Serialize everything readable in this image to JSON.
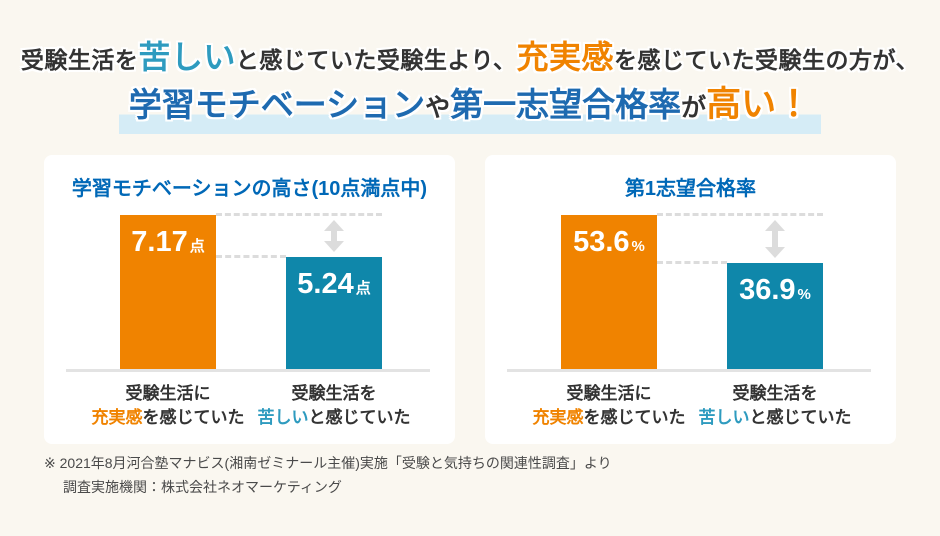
{
  "headline": {
    "line1": [
      {
        "text": "受験生活を",
        "emphasis": "none"
      },
      {
        "text": "苦しい",
        "emphasis": "teal"
      },
      {
        "text": "と感じていた受験生より、",
        "emphasis": "none"
      },
      {
        "text": "充実感",
        "emphasis": "orange"
      },
      {
        "text": "を感じていた受験生の方が、",
        "emphasis": "none"
      }
    ],
    "line2": [
      {
        "text": "学習モチベーション",
        "emphasis": "blue"
      },
      {
        "text": "や",
        "emphasis": "none"
      },
      {
        "text": "第一志望合格率",
        "emphasis": "blue"
      },
      {
        "text": "が",
        "emphasis": "none"
      },
      {
        "text": "高い！",
        "emphasis": "orange"
      }
    ]
  },
  "chart_data": [
    {
      "type": "bar",
      "title": "学習モチベーションの高さ(10点満点中)",
      "unit": "点",
      "categories": [
        "受験生活に充実感を感じていた",
        "受験生活を苦しいと感じていた"
      ],
      "values": [
        7.17,
        5.24
      ],
      "value_labels": [
        "7.17",
        "5.24"
      ],
      "bar_colors": [
        "#F08300",
        "#0F87AA"
      ],
      "ylim": [
        0,
        10
      ],
      "legend": "none",
      "grid": false,
      "annotation": "差分を示す点線と上下矢印",
      "category_segments": [
        {
          "line1": "受験生活に",
          "em": "充実感",
          "rest": "を感じていた"
        },
        {
          "line1": "受験生活を",
          "em": "苦しい",
          "rest": "と感じていた"
        }
      ]
    },
    {
      "type": "bar",
      "title": "第1志望合格率",
      "unit": "%",
      "categories": [
        "受験生活に充実感を感じていた",
        "受験生活を苦しいと感じていた"
      ],
      "values": [
        53.6,
        36.9
      ],
      "value_labels": [
        "53.6",
        "36.9"
      ],
      "bar_colors": [
        "#F08300",
        "#0F87AA"
      ],
      "ylim": [
        0,
        100
      ],
      "legend": "none",
      "grid": false,
      "annotation": "差分を示す点線と上下矢印",
      "category_segments": [
        {
          "line1": "受験生活に",
          "em": "充実感",
          "rest": "を感じていた"
        },
        {
          "line1": "受験生活を",
          "em": "苦しい",
          "rest": "と感じていた"
        }
      ]
    }
  ],
  "footer": {
    "line1": "※ 2021年8月河合塾マナビス(湘南ゼミナール主催)実施「受験と気持ちの関連性調査」より",
    "line2": "調査実施機関：株式会社ネオマーケティング"
  },
  "colors": {
    "background": "#FAF7F0",
    "card": "#FFFFFF",
    "text_dark": "#333333",
    "headline_blue": "#1E6AB0",
    "title_blue": "#0068B7",
    "accent_orange": "#F08300",
    "accent_teal_text": "#2E9BBF",
    "bar_orange": "#F08300",
    "bar_teal": "#0F87AA",
    "guide_gray": "#DCDCDC",
    "baseline_gray": "#E3E3E3",
    "highlight_band": "#D5ECF6",
    "footer_gray": "#4A4A4A"
  }
}
